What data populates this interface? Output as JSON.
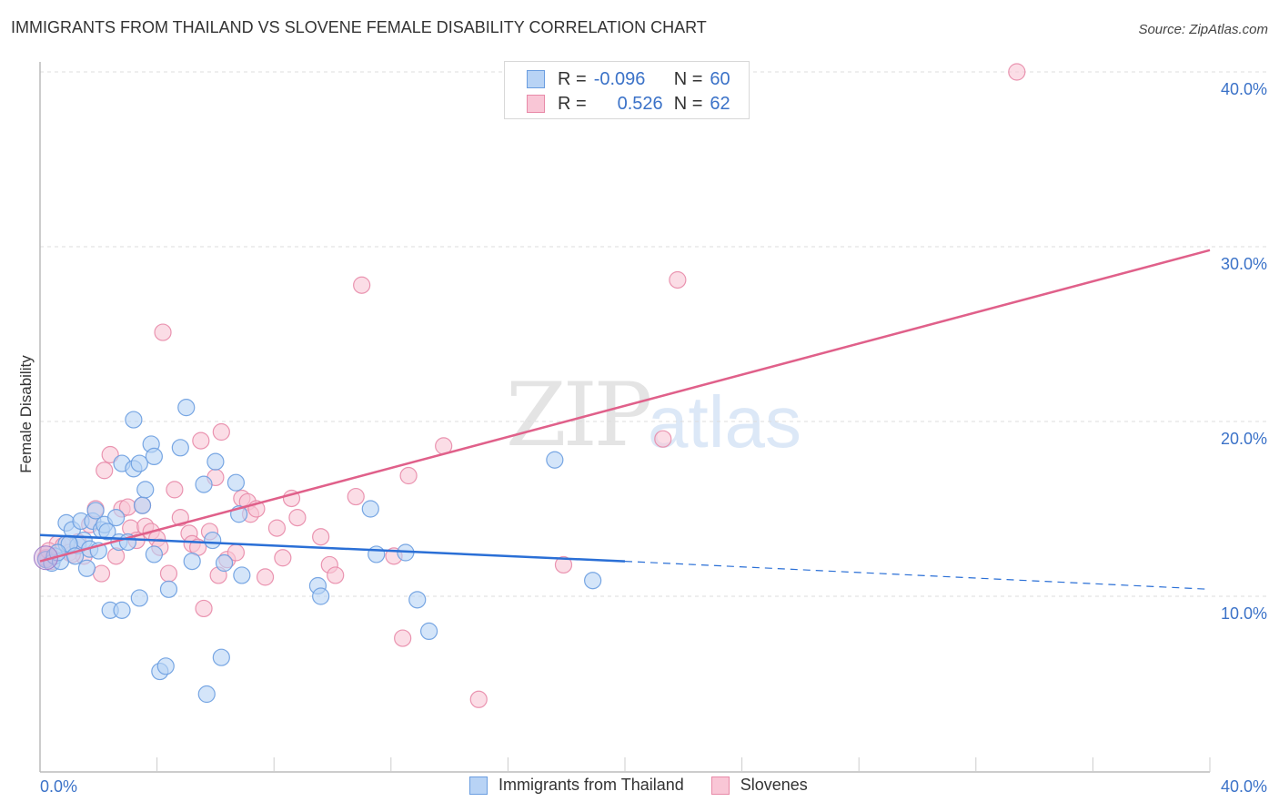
{
  "header": {
    "title": "IMMIGRANTS FROM THAILAND VS SLOVENE FEMALE DISABILITY CORRELATION CHART",
    "source": "Source: ZipAtlas.com"
  },
  "watermark": {
    "zip": "ZIP",
    "atlas": "atlas"
  },
  "legend_top": {
    "rows": [
      {
        "r_label": "R =",
        "r_value": "-0.096",
        "n_label": "N =",
        "n_value": "60",
        "color": "#b8d3f5",
        "border": "#6a9de0"
      },
      {
        "r_label": "R =",
        "r_value": "0.526",
        "n_label": "N =",
        "n_value": "62",
        "color": "#f9c6d6",
        "border": "#e88aa8"
      }
    ]
  },
  "legend_bottom": {
    "items": [
      {
        "label": "Immigrants from Thailand",
        "color": "#b8d3f5",
        "border": "#6a9de0"
      },
      {
        "label": "Slovenes",
        "color": "#f9c6d6",
        "border": "#e88aa8"
      }
    ]
  },
  "chart_data": {
    "type": "scatter",
    "title": "IMMIGRANTS FROM THAILAND VS SLOVENE FEMALE DISABILITY CORRELATION CHART",
    "xlabel": "",
    "ylabel": "Female Disability",
    "xlim": [
      0,
      40
    ],
    "ylim": [
      0,
      40
    ],
    "x_tick_labels": [
      "0.0%",
      "40.0%"
    ],
    "y_tick_labels": [
      "10.0%",
      "20.0%",
      "30.0%",
      "40.0%"
    ],
    "y_ticks": [
      10,
      20,
      30,
      40
    ],
    "grid": true,
    "legend_position": "bottom",
    "series": [
      {
        "name": "Immigrants from Thailand",
        "color": "#6a9de0",
        "fill": "#b8d3f5",
        "R": -0.096,
        "N": 60,
        "trend": {
          "x0": 0,
          "y0": 13.5,
          "x1": 20,
          "y1": 12.0,
          "dashed_to_x": 40,
          "dashed_to_y": 10.4
        },
        "points": [
          [
            0.2,
            12.1
          ],
          [
            0.4,
            11.9
          ],
          [
            0.5,
            12.3
          ],
          [
            0.7,
            12.0
          ],
          [
            0.9,
            13.0
          ],
          [
            0.9,
            14.2
          ],
          [
            1.1,
            13.8
          ],
          [
            1.3,
            12.9
          ],
          [
            1.4,
            14.3
          ],
          [
            1.5,
            13.2
          ],
          [
            1.6,
            11.6
          ],
          [
            1.7,
            12.7
          ],
          [
            1.8,
            14.3
          ],
          [
            1.9,
            14.9
          ],
          [
            2.1,
            13.8
          ],
          [
            2.2,
            14.1
          ],
          [
            2.3,
            13.7
          ],
          [
            2.4,
            9.2
          ],
          [
            2.6,
            14.5
          ],
          [
            2.7,
            13.1
          ],
          [
            2.8,
            9.2
          ],
          [
            2.8,
            17.6
          ],
          [
            3.0,
            13.1
          ],
          [
            3.2,
            17.3
          ],
          [
            3.2,
            20.1
          ],
          [
            3.4,
            17.6
          ],
          [
            3.4,
            9.9
          ],
          [
            3.5,
            15.2
          ],
          [
            3.6,
            16.1
          ],
          [
            3.8,
            18.7
          ],
          [
            3.9,
            18.0
          ],
          [
            3.9,
            12.4
          ],
          [
            4.1,
            5.7
          ],
          [
            4.3,
            6.0
          ],
          [
            4.4,
            10.4
          ],
          [
            4.8,
            18.5
          ],
          [
            5.0,
            20.8
          ],
          [
            5.2,
            12.0
          ],
          [
            5.6,
            16.4
          ],
          [
            5.7,
            4.4
          ],
          [
            5.9,
            13.2
          ],
          [
            6.0,
            17.7
          ],
          [
            6.2,
            6.5
          ],
          [
            6.3,
            11.9
          ],
          [
            6.7,
            16.5
          ],
          [
            6.8,
            14.7
          ],
          [
            6.9,
            11.2
          ],
          [
            9.5,
            10.6
          ],
          [
            9.6,
            10.0
          ],
          [
            11.3,
            15.0
          ],
          [
            11.5,
            12.4
          ],
          [
            12.5,
            12.5
          ],
          [
            12.9,
            9.8
          ],
          [
            13.3,
            8.0
          ],
          [
            17.6,
            17.8
          ],
          [
            18.9,
            10.9
          ],
          [
            1.0,
            13.0
          ],
          [
            2.0,
            12.6
          ],
          [
            0.6,
            12.5
          ],
          [
            1.2,
            12.3
          ]
        ]
      },
      {
        "name": "Slovenes",
        "color": "#e88aa8",
        "fill": "#f9c6d6",
        "R": 0.526,
        "N": 62,
        "trend": {
          "x0": 0,
          "y0": 12.0,
          "x1": 40,
          "y1": 29.8
        },
        "points": [
          [
            0.2,
            12.2
          ],
          [
            0.4,
            12.0
          ],
          [
            0.6,
            13.0
          ],
          [
            0.8,
            12.9
          ],
          [
            1.0,
            12.5
          ],
          [
            1.3,
            13.1
          ],
          [
            1.5,
            12.3
          ],
          [
            1.7,
            14.1
          ],
          [
            1.9,
            15.0
          ],
          [
            2.1,
            11.3
          ],
          [
            2.2,
            17.2
          ],
          [
            2.4,
            18.1
          ],
          [
            2.6,
            12.3
          ],
          [
            2.8,
            15.0
          ],
          [
            3.0,
            15.1
          ],
          [
            3.1,
            13.9
          ],
          [
            3.3,
            13.2
          ],
          [
            3.5,
            15.2
          ],
          [
            3.6,
            14.0
          ],
          [
            3.8,
            13.7
          ],
          [
            4.0,
            13.3
          ],
          [
            4.1,
            12.8
          ],
          [
            4.2,
            25.1
          ],
          [
            4.4,
            11.3
          ],
          [
            4.6,
            16.1
          ],
          [
            4.8,
            14.5
          ],
          [
            5.1,
            13.6
          ],
          [
            5.2,
            13.0
          ],
          [
            5.4,
            12.8
          ],
          [
            5.5,
            18.9
          ],
          [
            5.6,
            9.3
          ],
          [
            5.8,
            13.7
          ],
          [
            6.0,
            16.8
          ],
          [
            6.1,
            11.2
          ],
          [
            6.2,
            19.4
          ],
          [
            6.4,
            12.1
          ],
          [
            6.7,
            12.5
          ],
          [
            6.9,
            15.6
          ],
          [
            7.1,
            15.4
          ],
          [
            7.2,
            14.7
          ],
          [
            7.4,
            15.0
          ],
          [
            7.7,
            11.1
          ],
          [
            8.1,
            13.9
          ],
          [
            8.3,
            12.2
          ],
          [
            8.6,
            15.6
          ],
          [
            8.8,
            14.5
          ],
          [
            9.6,
            13.4
          ],
          [
            9.9,
            11.8
          ],
          [
            10.1,
            11.2
          ],
          [
            10.8,
            15.7
          ],
          [
            11.0,
            27.8
          ],
          [
            12.1,
            12.3
          ],
          [
            12.4,
            7.6
          ],
          [
            12.6,
            16.9
          ],
          [
            13.8,
            18.6
          ],
          [
            15.0,
            4.1
          ],
          [
            17.9,
            11.8
          ],
          [
            21.3,
            19.0
          ],
          [
            21.8,
            28.1
          ],
          [
            33.4,
            40.0
          ],
          [
            0.3,
            12.6
          ],
          [
            1.1,
            12.4
          ]
        ]
      }
    ]
  }
}
